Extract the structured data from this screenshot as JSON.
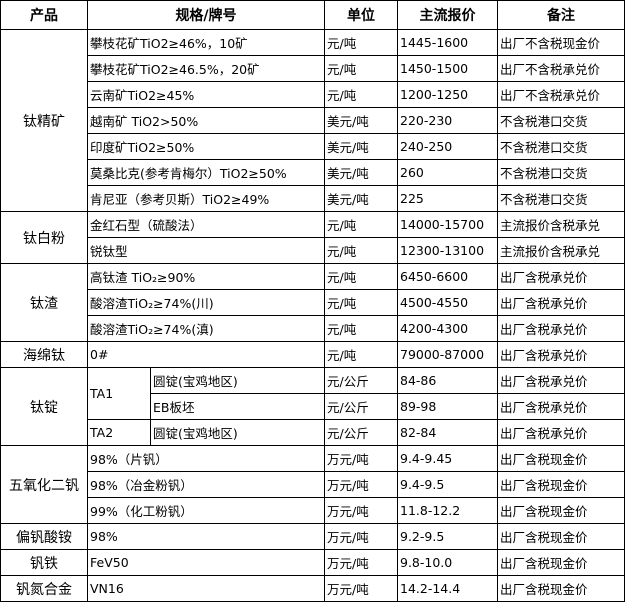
{
  "headers": {
    "product": "产品",
    "spec": "规格/牌号",
    "unit": "单位",
    "price": "主流报价",
    "note": "备注"
  },
  "groups": [
    {
      "product": "钛精矿",
      "rows": [
        {
          "spec": "攀枝花矿TiO2≥46%，10矿",
          "unit": "元/吨",
          "price": "1445-1600",
          "note": "出厂不含税现金价"
        },
        {
          "spec": "攀枝花矿TiO2≥46.5%，20矿",
          "unit": "元/吨",
          "price": "1450-1500",
          "note": "出厂不含税承兑价"
        },
        {
          "spec": "云南矿TiO2≥45%",
          "unit": "元/吨",
          "price": "1200-1250",
          "note": "出厂不含税承兑价"
        },
        {
          "spec": "越南矿 TiO2>50%",
          "unit": "美元/吨",
          "price": "220-230",
          "note": "不含税港口交货"
        },
        {
          "spec": "印度矿TiO2≥50%",
          "unit": "美元/吨",
          "price": "240-250",
          "note": "不含税港口交货"
        },
        {
          "spec": "莫桑比克(参考肯梅尔）TiO2≥50%",
          "unit": "美元/吨",
          "price": "260",
          "note": "不含税港口交货"
        },
        {
          "spec": "肯尼亚（参考贝斯）TiO2≥49%",
          "unit": "美元/吨",
          "price": "225",
          "note": "不含税港口交货"
        }
      ]
    },
    {
      "product": "钛白粉",
      "rows": [
        {
          "spec": "金红石型（硫酸法）",
          "unit": "元/吨",
          "price": "14000-15700",
          "note": "主流报价含税承兑"
        },
        {
          "spec": "锐钛型",
          "unit": "元/吨",
          "price": "12300-13100",
          "note": "主流报价含税承兑"
        }
      ]
    },
    {
      "product": "钛渣",
      "rows": [
        {
          "spec": "高钛渣 TiO₂≥90%",
          "unit": "元/吨",
          "price": "6450-6600",
          "note": "出厂含税承兑价"
        },
        {
          "spec": "酸溶渣TiO₂≥74%(川)",
          "unit": "元/吨",
          "price": "4500-4550",
          "note": "出厂含税承兑价"
        },
        {
          "spec": "酸溶渣TiO₂≥74%(滇)",
          "unit": "元/吨",
          "price": "4200-4300",
          "note": "出厂含税承兑价"
        }
      ]
    },
    {
      "product": "海绵钛",
      "rows": [
        {
          "spec": "0#",
          "unit": "元/吨",
          "price": "79000-87000",
          "note": "出厂含税承兑价"
        }
      ]
    },
    {
      "product": "钛锭",
      "rows": [
        {
          "grade": "TA1",
          "spec": "圆锭(宝鸡地区)",
          "unit": "元/公斤",
          "price": "84-86",
          "note": "出厂含税承兑价"
        },
        {
          "grade": "TA1",
          "spec": "EB板坯",
          "unit": "元/公斤",
          "price": "89-98",
          "note": "出厂含税承兑价"
        },
        {
          "grade": "TA2",
          "spec": "圆锭(宝鸡地区)",
          "unit": "元/公斤",
          "price": "82-84",
          "note": "出厂含税承兑价"
        }
      ]
    },
    {
      "product": "五氧化二钒",
      "rows": [
        {
          "spec": "98%（片钒）",
          "unit": "万元/吨",
          "price": "9.4-9.45",
          "note": "出厂含税现金价"
        },
        {
          "spec": "98%（冶金粉钒）",
          "unit": "万元/吨",
          "price": "9.4-9.5",
          "note": "出厂含税现金价"
        },
        {
          "spec": "99%（化工粉钒）",
          "unit": "万元/吨",
          "price": "11.8-12.2",
          "note": "出厂含税现金价"
        }
      ]
    },
    {
      "product": "偏钒酸铵",
      "rows": [
        {
          "spec": "98%",
          "unit": "万元/吨",
          "price": "9.2-9.5",
          "note": "出厂含税现金价"
        }
      ]
    },
    {
      "product": "钒铁",
      "rows": [
        {
          "spec": "FeV50",
          "unit": "万元/吨",
          "price": "9.8-10.0",
          "note": "出厂含税现金价"
        }
      ]
    },
    {
      "product": "钒氮合金",
      "rows": [
        {
          "spec": "VN16",
          "unit": "万元/吨",
          "price": "14.2-14.4",
          "note": "出厂含税现金价"
        }
      ]
    }
  ]
}
